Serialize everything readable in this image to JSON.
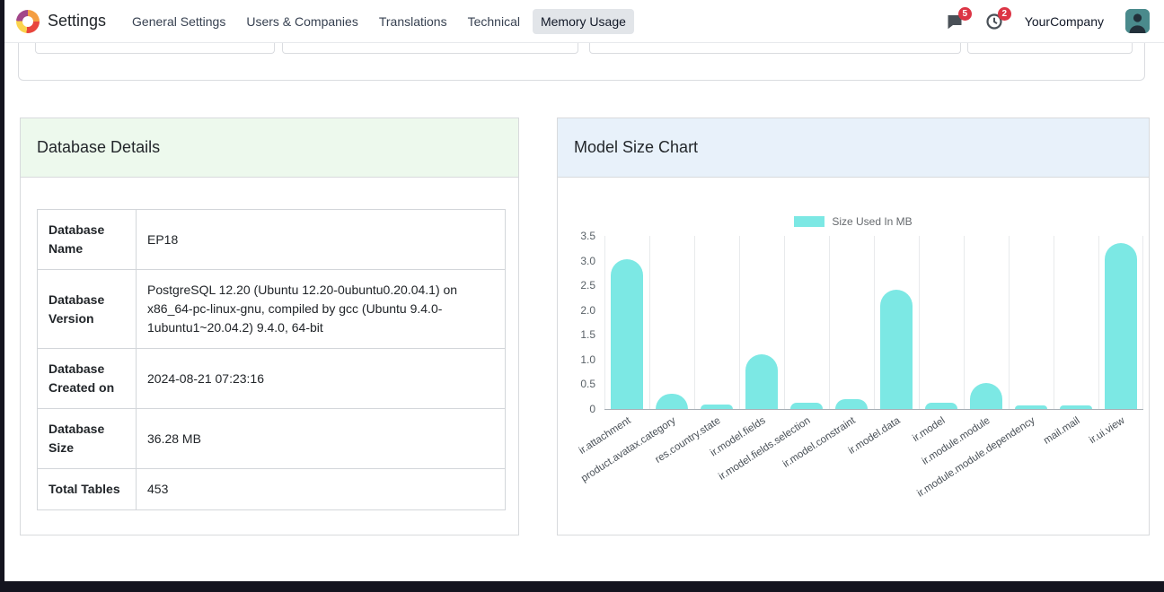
{
  "nav": {
    "app_title": "Settings",
    "items": [
      {
        "label": "General Settings"
      },
      {
        "label": "Users & Companies"
      },
      {
        "label": "Translations"
      },
      {
        "label": "Technical"
      },
      {
        "label": "Memory Usage"
      }
    ],
    "messages_badge": "5",
    "activities_badge": "2",
    "company_name": "YourCompany"
  },
  "database_details": {
    "title": "Database Details",
    "rows": [
      {
        "label": "Database Name",
        "value": "EP18"
      },
      {
        "label": "Database Version",
        "value": "PostgreSQL 12.20 (Ubuntu 12.20-0ubuntu0.20.04.1) on x86_64-pc-linux-gnu, compiled by gcc (Ubuntu 9.4.0-1ubuntu1~20.04.2) 9.4.0, 64-bit"
      },
      {
        "label": "Database Created on",
        "value": "2024-08-21 07:23:16"
      },
      {
        "label": "Database Size",
        "value": "36.28 MB"
      },
      {
        "label": "Total Tables",
        "value": "453"
      }
    ]
  },
  "model_size_chart": {
    "title": "Model Size Chart"
  },
  "chart_data": {
    "type": "bar",
    "title": "Model Size Chart",
    "legend": "Size Used In MB",
    "legend_position": "top",
    "categories": [
      "ir.attachment",
      "product.avatax.category",
      "res.country.state",
      "ir.model.fields",
      "ir.model.fields.selection",
      "ir.model.constraint",
      "ir.model.data",
      "ir.model",
      "ir.module.module",
      "ir.module.module.dependency",
      "mail.mail",
      "ir.ui.view"
    ],
    "values": [
      3.02,
      0.3,
      0.1,
      1.1,
      0.12,
      0.2,
      2.42,
      0.12,
      0.52,
      0.08,
      0.08,
      3.35
    ],
    "ylim": [
      0,
      3.5
    ],
    "ytick_step": 0.5,
    "yticks": [
      "3.5",
      "3.0",
      "2.5",
      "2.0",
      "1.5",
      "1.0",
      "0.5",
      "0"
    ],
    "bar_color": "#7ce8e4",
    "grid": "vertical",
    "xlabel": "",
    "ylabel": ""
  }
}
